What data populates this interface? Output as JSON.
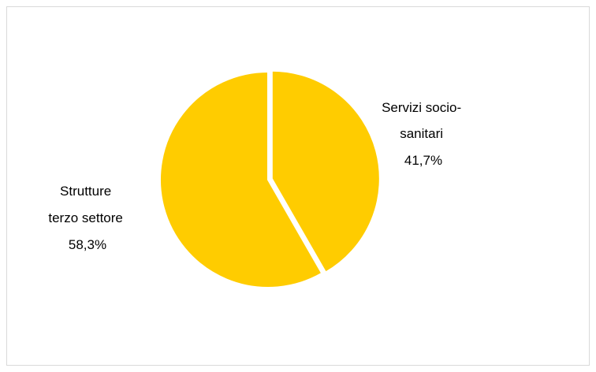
{
  "chart_data": {
    "type": "pie",
    "title": "",
    "categories": [
      "Servizi socio-sanitari",
      "Strutture terzo settore"
    ],
    "values": [
      41.7,
      58.3
    ],
    "unit": "%",
    "slice_color": "#FFCC00",
    "separator_color": "#ffffff",
    "labels": [
      {
        "lines": [
          "Servizi socio-",
          "sanitari"
        ],
        "value_text": "41,7%"
      },
      {
        "lines": [
          "Strutture",
          "terzo settore"
        ],
        "value_text": "58,3%"
      }
    ],
    "legend": "none",
    "start_angle_deg": 0,
    "direction": "clockwise",
    "exploded_slice_index": 0
  }
}
